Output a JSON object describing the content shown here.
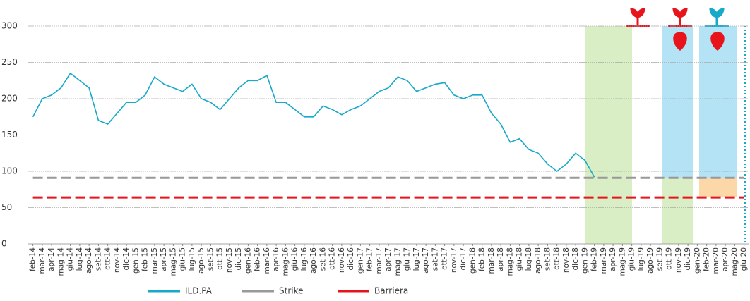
{
  "chart_data": {
    "type": "line",
    "categories": [
      "feb-14",
      "mar-14",
      "apr-14",
      "mag-14",
      "giu-14",
      "lug-14",
      "ago-14",
      "set-14",
      "ott-14",
      "nov-14",
      "dic-14",
      "gen-15",
      "feb-15",
      "mar-15",
      "apr-15",
      "mag-15",
      "giu-15",
      "lug-15",
      "ago-15",
      "set-15",
      "ott-15",
      "nov-15",
      "dic-15",
      "gen-16",
      "feb-16",
      "mar-16",
      "apr-16",
      "mag-16",
      "giu-16",
      "lug-16",
      "ago-16",
      "set-16",
      "ott-16",
      "nov-16",
      "dic-16",
      "gen-17",
      "feb-17",
      "mar-17",
      "apr-17",
      "mag-17",
      "giu-17",
      "lug-17",
      "ago-17",
      "set-17",
      "ott-17",
      "nov-17",
      "dic-17",
      "gen-18",
      "feb-18",
      "mar-18",
      "apr-18",
      "mag-18",
      "giu-18",
      "lug-18",
      "ago-18",
      "set-18",
      "ott-18",
      "nov-18",
      "dic-18",
      "gen-19",
      "feb-19",
      "mar-19",
      "apr-19",
      "mag-19",
      "giu-19",
      "lug-19",
      "ago-19",
      "set-19",
      "ott-19",
      "nov-19",
      "dic-19",
      "gen-20",
      "feb-20",
      "mar-20",
      "apr-20",
      "mag-20",
      "giu-20"
    ],
    "series": [
      {
        "name": "ILD.PA",
        "color": "#17a9c9",
        "style": "solid",
        "values": [
          175,
          200,
          205,
          215,
          235,
          225,
          215,
          170,
          165,
          180,
          195,
          195,
          205,
          230,
          220,
          215,
          210,
          220,
          200,
          195,
          185,
          200,
          215,
          225,
          225,
          232,
          195,
          195,
          185,
          175,
          175,
          190,
          185,
          178,
          185,
          190,
          200,
          210,
          215,
          230,
          225,
          210,
          215,
          220,
          222,
          205,
          200,
          205,
          205,
          180,
          165,
          140,
          145,
          130,
          125,
          110,
          100,
          110,
          125,
          115,
          92,
          null,
          null,
          null,
          null,
          null,
          null,
          null,
          null,
          null,
          null,
          null,
          null,
          null,
          null,
          null,
          null
        ]
      },
      {
        "name": "Strike",
        "color": "#999999",
        "style": "dashed",
        "values": [
          91,
          91,
          91,
          91,
          91,
          91,
          91,
          91,
          91,
          91,
          91,
          91,
          91,
          91,
          91,
          91,
          91,
          91,
          91,
          91,
          91,
          91,
          91,
          91,
          91,
          91,
          91,
          91,
          91,
          91,
          91,
          91,
          91,
          91,
          91,
          91,
          91,
          91,
          91,
          91,
          91,
          91,
          91,
          91,
          91,
          91,
          91,
          91,
          91,
          91,
          91,
          91,
          91,
          91,
          91,
          91,
          91,
          91,
          91,
          91,
          91,
          91,
          91,
          91,
          91,
          91,
          91,
          91,
          91,
          91,
          91,
          91,
          91,
          91,
          91,
          91,
          91
        ]
      },
      {
        "name": "Barriera",
        "color": "#e8141c",
        "style": "dashed",
        "values": [
          64,
          64,
          64,
          64,
          64,
          64,
          64,
          64,
          64,
          64,
          64,
          64,
          64,
          64,
          64,
          64,
          64,
          64,
          64,
          64,
          64,
          64,
          64,
          64,
          64,
          64,
          64,
          64,
          64,
          64,
          64,
          64,
          64,
          64,
          64,
          64,
          64,
          64,
          64,
          64,
          64,
          64,
          64,
          64,
          64,
          64,
          64,
          64,
          64,
          64,
          64,
          64,
          64,
          64,
          64,
          64,
          64,
          64,
          64,
          64,
          64,
          64,
          64,
          64,
          64,
          64,
          64,
          64,
          64,
          64,
          64,
          64,
          64,
          64,
          64,
          64,
          64
        ]
      }
    ],
    "ylim": [
      0,
      300
    ],
    "yticks": [
      0,
      50,
      100,
      150,
      200,
      250,
      300
    ],
    "grid": true
  }
}
